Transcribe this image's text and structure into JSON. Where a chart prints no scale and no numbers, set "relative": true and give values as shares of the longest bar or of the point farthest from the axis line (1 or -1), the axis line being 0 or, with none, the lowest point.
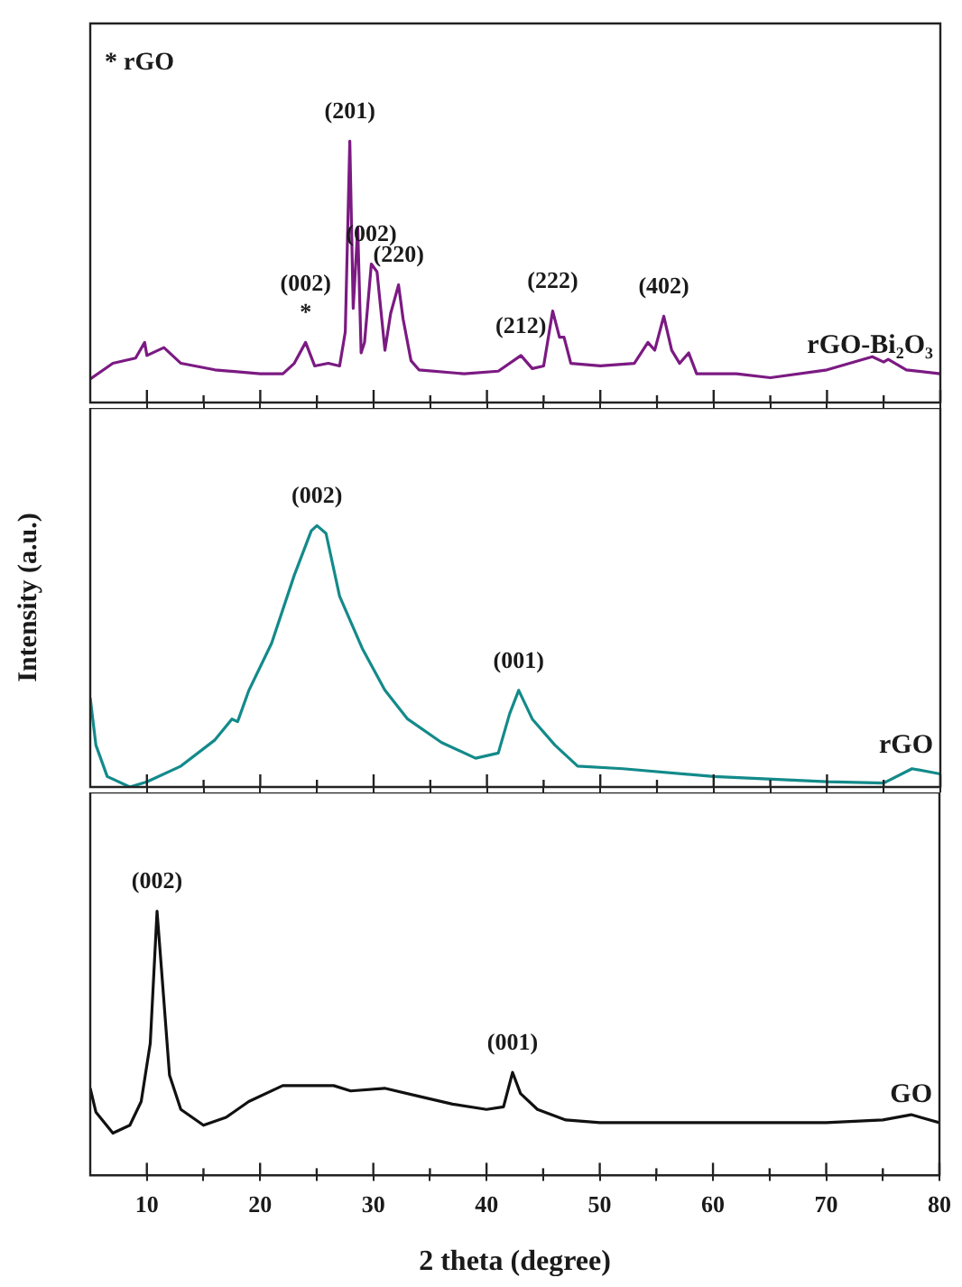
{
  "chart_data": [
    {
      "type": "line",
      "relative": true,
      "xlim": [
        5,
        80
      ],
      "xticks": [
        10,
        {
          "value": 15,
          "label": null
        },
        20,
        {
          "value": 25,
          "label": null
        },
        30,
        {
          "value": 35,
          "label": null
        },
        40,
        {
          "value": 45,
          "label": null
        },
        50,
        {
          "value": 55,
          "label": null
        },
        60,
        {
          "value": 65,
          "label": null
        },
        70,
        {
          "value": 75,
          "label": null
        },
        80
      ],
      "tick_labels": false,
      "grid": false,
      "legend": false,
      "marker": "none",
      "x": [
        5,
        7,
        9,
        9.8,
        10,
        11.5,
        13,
        16,
        20,
        22,
        23,
        24,
        24.8,
        26,
        27,
        27.5,
        27.9,
        28.2,
        28.6,
        28.9,
        29.2,
        29.8,
        30.3,
        31,
        31.5,
        32.2,
        32.6,
        33.3,
        34,
        38,
        41,
        43,
        44,
        45,
        45.8,
        46.4,
        46.8,
        47.4,
        50,
        53,
        54.2,
        54.8,
        55.6,
        56.3,
        57,
        57.8,
        58.5,
        62,
        65,
        70,
        74,
        75,
        75.4,
        77,
        80
      ],
      "series": [
        {
          "name": "rGO-Bi₂O₃",
          "color": "#7b1a82",
          "values": [
            0.09,
            0.15,
            0.17,
            0.23,
            0.18,
            0.21,
            0.15,
            0.125,
            0.11,
            0.11,
            0.15,
            0.23,
            0.14,
            0.15,
            0.14,
            0.27,
            1.0,
            0.36,
            0.67,
            0.19,
            0.23,
            0.53,
            0.5,
            0.2,
            0.34,
            0.45,
            0.32,
            0.16,
            0.125,
            0.11,
            0.12,
            0.18,
            0.13,
            0.14,
            0.35,
            0.25,
            0.25,
            0.15,
            0.14,
            0.15,
            0.23,
            0.2,
            0.33,
            0.2,
            0.15,
            0.19,
            0.11,
            0.11,
            0.095,
            0.125,
            0.175,
            0.155,
            0.165,
            0.125,
            0.11
          ]
        }
      ],
      "annotations": [
        "* rGO",
        {
          "text": "*",
          "x": 24,
          "y": 0.23
        },
        {
          "text": "(002)",
          "x": 24,
          "y": 0.23
        },
        {
          "text": "(201)",
          "x": 27.9,
          "y": 1.0
        },
        {
          "text": "(002)",
          "x": 29.8,
          "y": 0.53
        },
        {
          "text": "(220)",
          "x": 32.2,
          "y": 0.45
        },
        {
          "text": "(212)",
          "x": 43,
          "y": 0.18
        },
        {
          "text": "(222)",
          "x": 45.8,
          "y": 0.35
        },
        {
          "text": "(402)",
          "x": 55.6,
          "y": 0.33
        }
      ]
    },
    {
      "type": "line",
      "relative": true,
      "xlim": [
        5,
        80
      ],
      "xticks": [
        10,
        {
          "value": 15,
          "label": null
        },
        20,
        {
          "value": 25,
          "label": null
        },
        30,
        {
          "value": 35,
          "label": null
        },
        40,
        {
          "value": 45,
          "label": null
        },
        50,
        {
          "value": 55,
          "label": null
        },
        60,
        {
          "value": 65,
          "label": null
        },
        70,
        {
          "value": 75,
          "label": null
        },
        80
      ],
      "tick_labels": false,
      "grid": false,
      "legend": false,
      "marker": "none",
      "ylabel": "Intensity (a.u.)",
      "x": [
        5,
        5.5,
        6.5,
        8.5,
        10,
        13,
        16,
        17.5,
        18,
        19,
        21,
        23,
        24.5,
        25,
        25.8,
        27,
        29,
        31,
        33,
        36,
        39,
        41,
        42,
        42.8,
        44,
        46,
        48,
        52,
        60,
        70,
        75,
        77.5,
        80
      ],
      "series": [
        {
          "name": "rGO",
          "color": "#138a8a",
          "values": [
            0.34,
            0.16,
            0.04,
            0,
            0.02,
            0.08,
            0.18,
            0.26,
            0.25,
            0.37,
            0.55,
            0.81,
            0.98,
            1.0,
            0.97,
            0.73,
            0.53,
            0.37,
            0.26,
            0.17,
            0.11,
            0.13,
            0.28,
            0.37,
            0.26,
            0.16,
            0.08,
            0.07,
            0.04,
            0.02,
            0.015,
            0.07,
            0.05
          ]
        }
      ],
      "annotations": [
        {
          "text": "(002)",
          "x": 25,
          "y": 1.0
        },
        {
          "text": "(001)",
          "x": 42.8,
          "y": 0.37
        }
      ]
    },
    {
      "type": "line",
      "relative": true,
      "xlim": [
        5,
        80
      ],
      "xticks": [
        10,
        {
          "value": 15,
          "label": null
        },
        20,
        {
          "value": 25,
          "label": null
        },
        30,
        {
          "value": 35,
          "label": null
        },
        40,
        {
          "value": 45,
          "label": null
        },
        50,
        {
          "value": 55,
          "label": null
        },
        60,
        {
          "value": 65,
          "label": null
        },
        70,
        {
          "value": 75,
          "label": null
        },
        80
      ],
      "tick_labels": "x",
      "grid": false,
      "legend": false,
      "marker": "none",
      "xlabel": "2 theta (degree)",
      "x": [
        5,
        5.5,
        7,
        8.5,
        9.5,
        10.3,
        10.9,
        11.4,
        12,
        13,
        15,
        17,
        19,
        22,
        26.5,
        28,
        31,
        34,
        37,
        40,
        41.5,
        42.3,
        43,
        44.5,
        47,
        50,
        60,
        70,
        75,
        77.5,
        80
      ],
      "series": [
        {
          "name": "GO",
          "color": "#111111",
          "values": [
            0.33,
            0.24,
            0.16,
            0.19,
            0.28,
            0.5,
            1.0,
            0.72,
            0.38,
            0.25,
            0.19,
            0.22,
            0.28,
            0.34,
            0.34,
            0.32,
            0.33,
            0.3,
            0.27,
            0.25,
            0.26,
            0.39,
            0.31,
            0.25,
            0.21,
            0.2,
            0.2,
            0.2,
            0.21,
            0.23,
            0.2
          ]
        }
      ],
      "annotations": [
        {
          "text": "(002)",
          "x": 10.9,
          "y": 1.0
        },
        {
          "text": "(001)",
          "x": 42.3,
          "y": 0.39
        }
      ]
    }
  ]
}
